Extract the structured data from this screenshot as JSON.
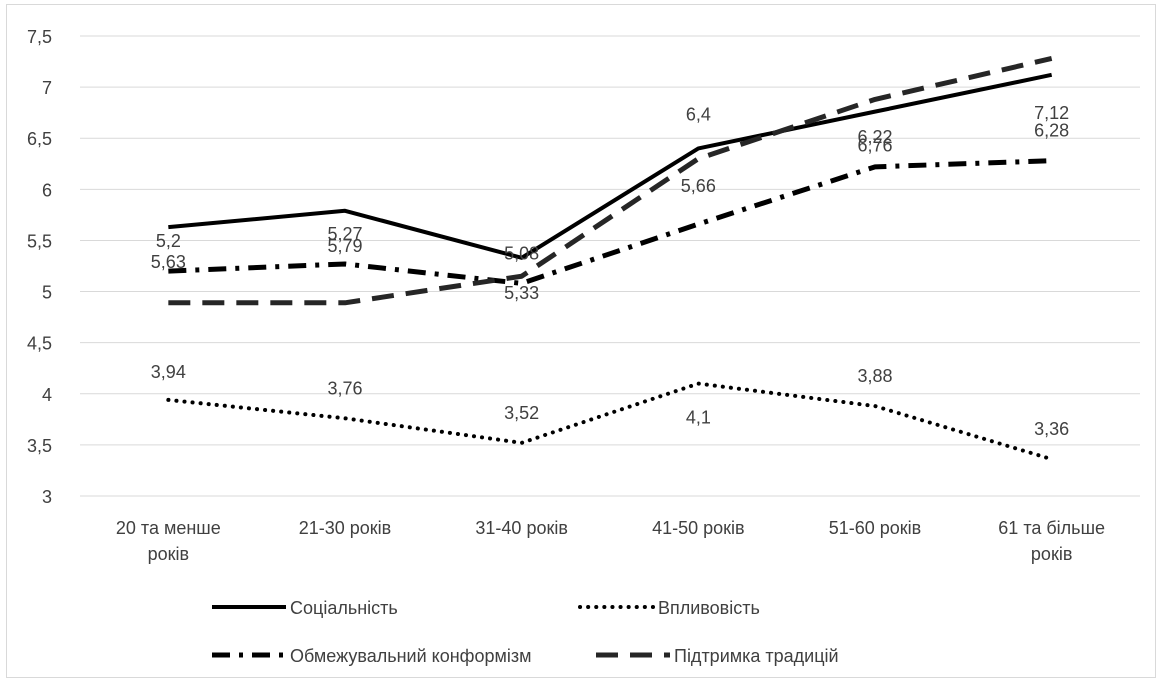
{
  "chart_data": {
    "type": "line",
    "title": "",
    "xlabel": "",
    "ylabel": "",
    "categories": [
      [
        "20 та менше",
        "років"
      ],
      [
        "21-30 років"
      ],
      [
        "31-40 років"
      ],
      [
        "41-50 років"
      ],
      [
        "51-60 років"
      ],
      [
        "61 та більше",
        "років"
      ]
    ],
    "ylim": [
      3,
      7.5
    ],
    "yticks": [
      "3",
      "3,5",
      "4",
      "4,5",
      "5",
      "5,5",
      "6",
      "6,5",
      "7",
      "7,5"
    ],
    "grid": true,
    "legend_position": "bottom",
    "series": [
      {
        "name": "Соціальність",
        "style": "solid",
        "color": "#000000",
        "values": [
          5.63,
          5.79,
          5.33,
          6.4,
          6.76,
          7.12
        ],
        "labels": [
          "5,63",
          "5,79",
          "5,33",
          "6,4",
          "6,76",
          "7,12"
        ]
      },
      {
        "name": "Впливовість",
        "style": "dotted",
        "color": "#000000",
        "values": [
          3.94,
          3.76,
          3.52,
          4.1,
          3.88,
          3.36
        ],
        "labels": [
          "3,94",
          "3,76",
          "3,52",
          "4,1",
          "3,88",
          "3,36"
        ]
      },
      {
        "name": "Обмежувальний конформізм",
        "style": "dashdot",
        "color": "#000000",
        "values": [
          5.2,
          5.27,
          5.08,
          5.66,
          6.22,
          6.28
        ],
        "labels": [
          "5,2",
          "5,27",
          "5,08",
          "5,66",
          "6,22",
          "6,28"
        ]
      },
      {
        "name": "Підтримка традицій",
        "style": "dashed",
        "color": "#262626",
        "values": [
          4.89,
          4.89,
          5.15,
          6.3,
          6.88,
          7.28
        ],
        "labels": []
      }
    ]
  }
}
